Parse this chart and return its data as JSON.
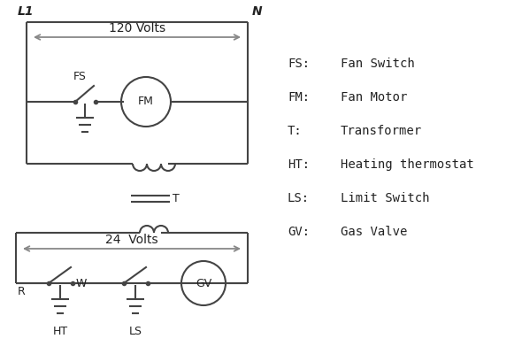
{
  "bg_color": "#ffffff",
  "line_color": "#444444",
  "arrow_color": "#888888",
  "text_color": "#222222",
  "legend": {
    "FS": "Fan Switch",
    "FM": "Fan Motor",
    "T": "Transformer",
    "HT": "Heating thermostat",
    "LS": "Limit Switch",
    "GV": "Gas Valve"
  },
  "L1_label": "L1",
  "N_label": "N",
  "volts120": "120 Volts",
  "volts24": "24  Volts"
}
